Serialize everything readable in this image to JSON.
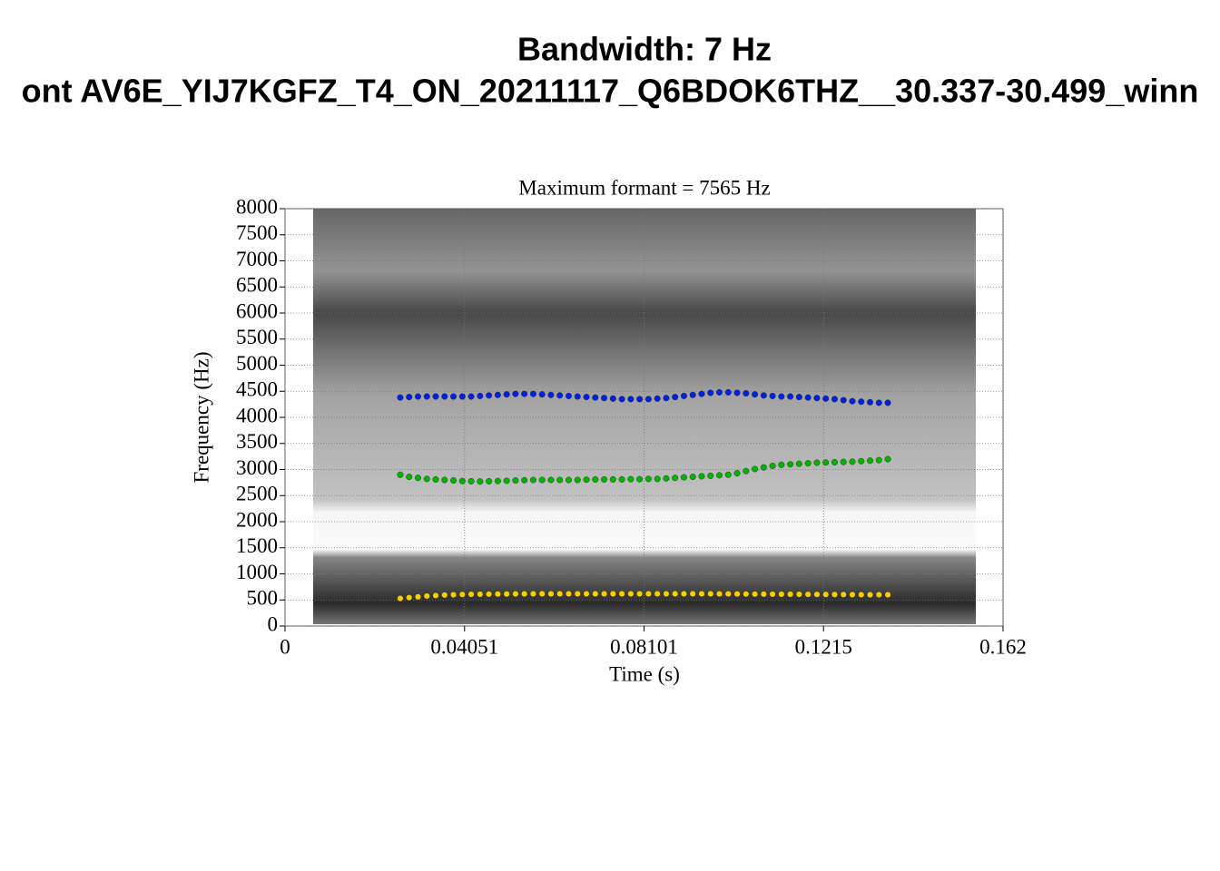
{
  "chart_data": {
    "type": "scatter",
    "title": "Bandwidth: 7 Hz",
    "title2": "ont AV6E_YIJ7KGFZ_T4_ON_20211117_Q6BDOK6THZ__30.337-30.499_winn",
    "subtitle": "Maximum formant = 7565 Hz",
    "xlabel": "Time (s)",
    "ylabel": "Frequency (Hz)",
    "xlim": [
      0,
      0.162
    ],
    "ylim": [
      0,
      8000
    ],
    "xticks": [
      0,
      0.04051,
      0.08101,
      0.1215,
      0.162
    ],
    "yticks": [
      0,
      500,
      1000,
      1500,
      2000,
      2500,
      3000,
      3500,
      4000,
      4500,
      5000,
      5500,
      6000,
      6500,
      7000,
      7500,
      8000
    ],
    "grid": true,
    "x": [
      0.026,
      0.028,
      0.03,
      0.032,
      0.034,
      0.036,
      0.038,
      0.04,
      0.042,
      0.044,
      0.046,
      0.048,
      0.05,
      0.052,
      0.054,
      0.056,
      0.058,
      0.06,
      0.062,
      0.064,
      0.066,
      0.068,
      0.07,
      0.072,
      0.074,
      0.076,
      0.078,
      0.08,
      0.082,
      0.084,
      0.086,
      0.088,
      0.09,
      0.092,
      0.094,
      0.096,
      0.098,
      0.1,
      0.102,
      0.104,
      0.106,
      0.108,
      0.11,
      0.112,
      0.114,
      0.116,
      0.118,
      0.12,
      0.122,
      0.124,
      0.126,
      0.128,
      0.13,
      0.132,
      0.134,
      0.136
    ],
    "series": [
      {
        "color": "#f5d000",
        "values": [
          530,
          545,
          560,
          575,
          585,
          595,
          600,
          605,
          608,
          610,
          612,
          614,
          615,
          616,
          617,
          618,
          618,
          618,
          618,
          618,
          618,
          618,
          618,
          618,
          618,
          618,
          618,
          618,
          618,
          618,
          618,
          618,
          618,
          618,
          618,
          618,
          617,
          616,
          615,
          614,
          613,
          612,
          611,
          610,
          609,
          608,
          607,
          606,
          605,
          604,
          603,
          602,
          601,
          600,
          600,
          600
        ]
      },
      {
        "color": "#00b400",
        "values": [
          2900,
          2860,
          2840,
          2820,
          2810,
          2800,
          2790,
          2780,
          2775,
          2770,
          2775,
          2780,
          2785,
          2790,
          2795,
          2800,
          2800,
          2800,
          2800,
          2800,
          2800,
          2805,
          2810,
          2810,
          2810,
          2810,
          2815,
          2815,
          2820,
          2820,
          2830,
          2840,
          2850,
          2860,
          2870,
          2880,
          2890,
          2900,
          2930,
          2970,
          3010,
          3040,
          3070,
          3090,
          3100,
          3110,
          3120,
          3130,
          3135,
          3140,
          3145,
          3150,
          3160,
          3170,
          3180,
          3200
        ]
      },
      {
        "color": "#0022dd",
        "values": [
          4380,
          4390,
          4400,
          4400,
          4400,
          4400,
          4400,
          4400,
          4400,
          4410,
          4420,
          4430,
          4440,
          4450,
          4450,
          4450,
          4440,
          4430,
          4420,
          4410,
          4400,
          4390,
          4380,
          4370,
          4360,
          4350,
          4350,
          4350,
          4350,
          4360,
          4370,
          4390,
          4410,
          4430,
          4450,
          4470,
          4480,
          4480,
          4470,
          4460,
          4440,
          4420,
          4410,
          4400,
          4400,
          4390,
          4380,
          4370,
          4360,
          4350,
          4330,
          4310,
          4300,
          4290,
          4280,
          4280
        ]
      }
    ]
  }
}
